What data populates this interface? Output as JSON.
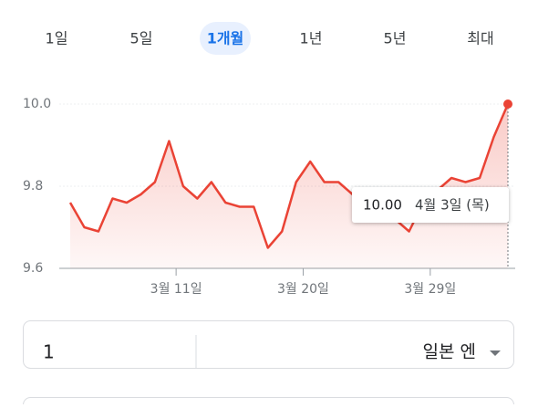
{
  "tabs": [
    "1일",
    "5일",
    "1개월",
    "1년",
    "5년",
    "최대"
  ],
  "active_tab": 2,
  "chart_data": {
    "type": "line",
    "x": [
      0,
      1,
      2,
      3,
      4,
      5,
      6,
      7,
      8,
      9,
      10,
      11,
      12,
      13,
      14,
      15,
      16,
      17,
      18,
      19,
      20,
      21,
      22,
      23,
      24,
      25,
      26,
      27,
      28,
      29,
      30,
      31
    ],
    "series": [
      {
        "color": "#ea4335",
        "values": [
          9.76,
          9.7,
          9.69,
          9.77,
          9.76,
          9.78,
          9.81,
          9.91,
          9.8,
          9.77,
          9.81,
          9.76,
          9.75,
          9.75,
          9.65,
          9.69,
          9.81,
          9.86,
          9.81,
          9.81,
          9.78,
          9.76,
          9.74,
          9.72,
          9.69,
          9.76,
          9.79,
          9.82,
          9.81,
          9.82,
          9.92,
          10.0
        ]
      }
    ],
    "xlim": [
      0,
      31
    ],
    "xticks": [
      {
        "value": 7.5,
        "label": "3월 11일"
      },
      {
        "value": 16.5,
        "label": "3월 20일"
      },
      {
        "value": 25.5,
        "label": "3월 29일"
      }
    ],
    "ylim": [
      9.6,
      10.0
    ],
    "yticks": [
      9.6,
      9.8,
      {
        "value": 10.0,
        "label": "10.0"
      }
    ],
    "grid": true,
    "tooltip": {
      "value": "10.00",
      "date": "4월 3일 (목)"
    }
  },
  "converter": {
    "amount": "1",
    "currency": "일본 엔"
  }
}
